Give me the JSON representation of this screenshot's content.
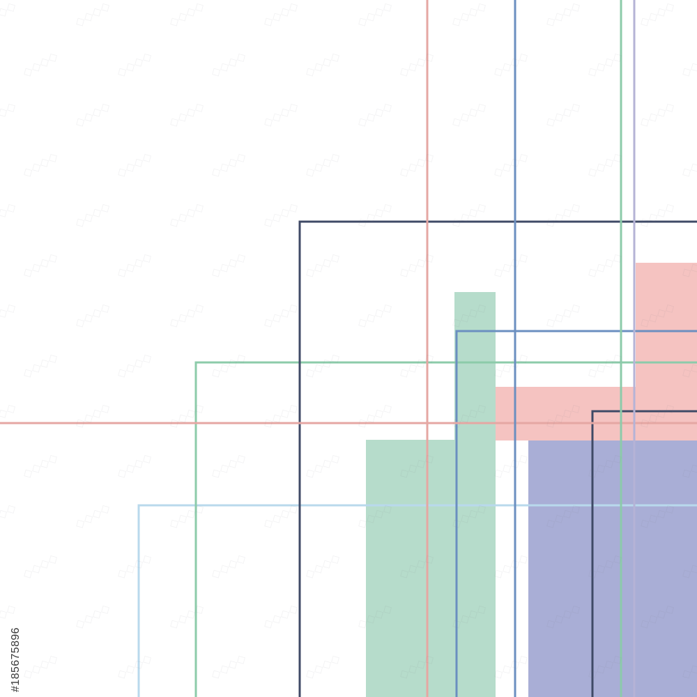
{
  "artwork": {
    "subject": "abstract geometric lines",
    "colors": {
      "background": "#ffffff",
      "navy": "#3f4a66",
      "salmon": "#e5a7a3",
      "steel_blue": "#6b8fc0",
      "mint": "#8ccbaa",
      "lavender": "#b5b3d6",
      "light_blue": "#b9d9ec",
      "mint_fill": "#b6dccb",
      "pink_fill": "#f5c3c1",
      "periwinkle_fill": "#a9aed6"
    }
  },
  "stock_id": {
    "text": "#185675896"
  }
}
